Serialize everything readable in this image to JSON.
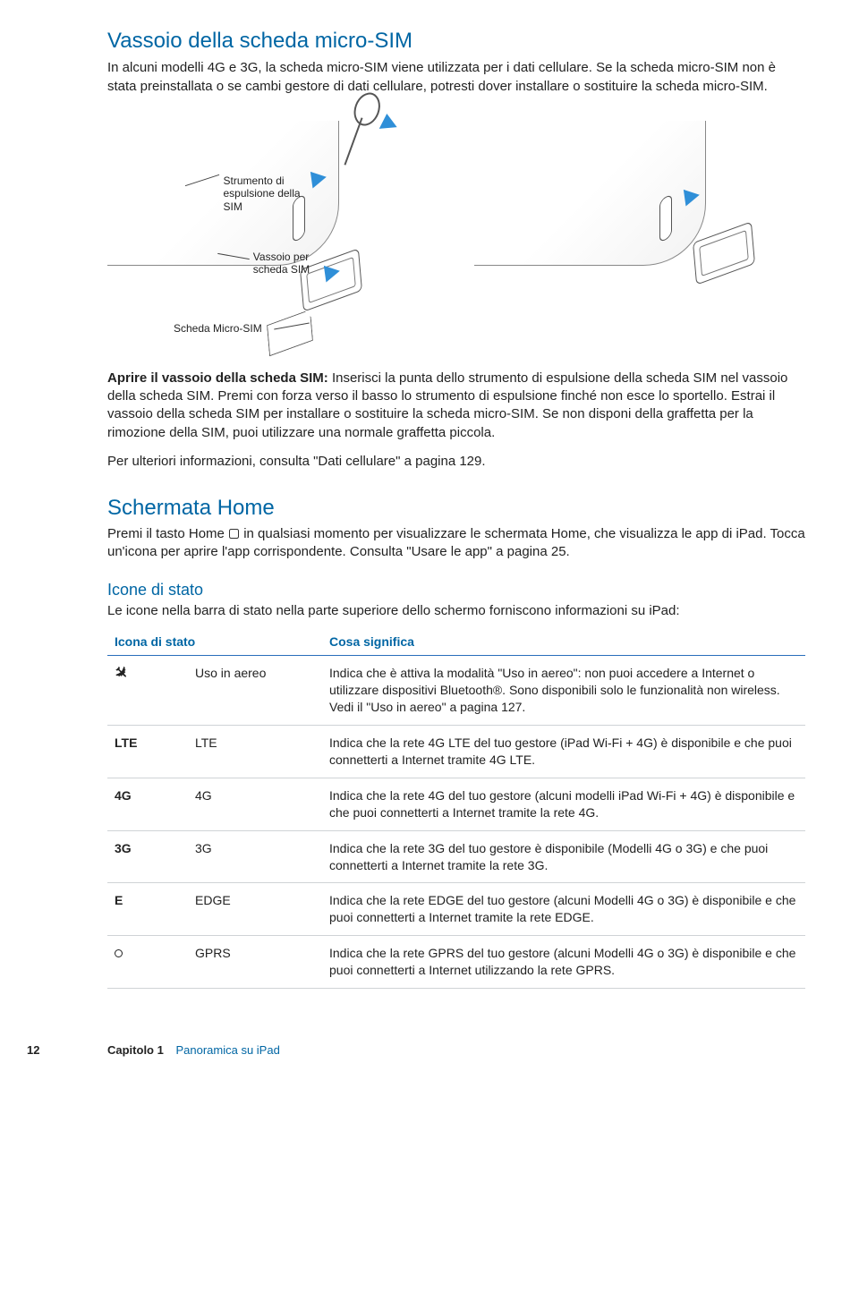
{
  "colors": {
    "heading_blue": "#0066a4",
    "rule_blue": "#2a6ebb",
    "body_text": "#222222",
    "row_rule": "#cfd3d6"
  },
  "h1": "Vassoio della scheda micro-SIM",
  "intro1": "In alcuni modelli 4G e 3G, la scheda micro-SIM viene utilizzata per i dati cellulare. Se la scheda micro-SIM non è stata preinstallata o se cambi gestore di dati cellulare, potresti dover installare o sostituire la scheda micro-SIM.",
  "diagram": {
    "callout_tool": "Strumento di espulsione della SIM",
    "callout_tray": "Vassoio per scheda SIM",
    "callout_sim": "Scheda Micro-SIM"
  },
  "open_tray": {
    "lead": "Aprire il vassoio della scheda SIM:",
    "text": "Inserisci la punta dello strumento di espulsione della scheda SIM nel vassoio della scheda SIM. Premi con forza verso il basso lo strumento di espulsione finché non esce lo sportello. Estrai il vassoio della scheda SIM per installare o sostituire la scheda micro-SIM. Se non disponi della graffetta per la rimozione della SIM, puoi utilizzare una normale graffetta piccola."
  },
  "more_info": "Per ulteriori informazioni, consulta \"Dati cellulare\" a pagina 129.",
  "h2": "Schermata Home",
  "home_text_before": "Premi il tasto Home ",
  "home_text_after": " in qualsiasi momento per visualizzare le schermata Home, che visualizza le app di iPad. Tocca un'icona per aprire l'app corrispondente. Consulta \"Usare le app\" a pagina 25.",
  "h3": "Icone di stato",
  "status_intro": "Le icone nella barra di stato nella parte superiore dello schermo forniscono informazioni su iPad:",
  "table": {
    "th_icon": "Icona di stato",
    "th_meaning": "Cosa significa",
    "rows": [
      {
        "icon_type": "airplane",
        "icon_text": "",
        "label": "Uso in aereo",
        "desc": "Indica che è attiva la modalità \"Uso in aereo\": non puoi accedere a Internet o utilizzare dispositivi Bluetooth®. Sono disponibili solo le funzionalità non wireless. Vedi il \"Uso in aereo\" a pagina 127."
      },
      {
        "icon_type": "text",
        "icon_text": "LTE",
        "label": "LTE",
        "desc": "Indica che la rete 4G LTE del tuo gestore (iPad Wi-Fi + 4G) è disponibile e che puoi connetterti a Internet tramite 4G LTE."
      },
      {
        "icon_type": "text",
        "icon_text": "4G",
        "label": "4G",
        "desc": "Indica che la rete 4G del tuo gestore (alcuni modelli iPad Wi-Fi + 4G) è disponibile e che puoi connetterti a Internet tramite la rete 4G."
      },
      {
        "icon_type": "text",
        "icon_text": "3G",
        "label": "3G",
        "desc": "Indica che la rete 3G del tuo gestore è disponibile (Modelli 4G o 3G) e che puoi connetterti a Internet tramite la rete 3G."
      },
      {
        "icon_type": "text",
        "icon_text": "E",
        "label": "EDGE",
        "desc": "Indica che la rete EDGE del tuo gestore (alcuni Modelli 4G o 3G) è disponibile e che puoi connetterti a Internet tramite la rete EDGE."
      },
      {
        "icon_type": "gprs",
        "icon_text": "",
        "label": "GPRS",
        "desc": "Indica che la rete GPRS del tuo gestore (alcuni Modelli 4G o 3G) è disponibile e che puoi connetterti a Internet utilizzando la rete GPRS."
      }
    ]
  },
  "footer": {
    "page": "12",
    "chapter": "Capitolo 1",
    "section": "Panoramica su iPad"
  }
}
